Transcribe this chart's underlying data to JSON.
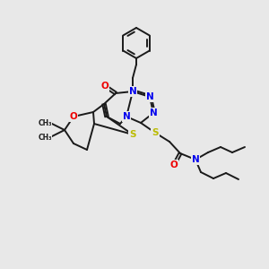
{
  "background_color": "#e8e8e8",
  "bond_color": "#1a1a1a",
  "atom_colors": {
    "N": "#0000ee",
    "O": "#ee0000",
    "S": "#bbbb00",
    "C": "#1a1a1a"
  },
  "figsize": [
    3.0,
    3.0
  ],
  "dpi": 100
}
